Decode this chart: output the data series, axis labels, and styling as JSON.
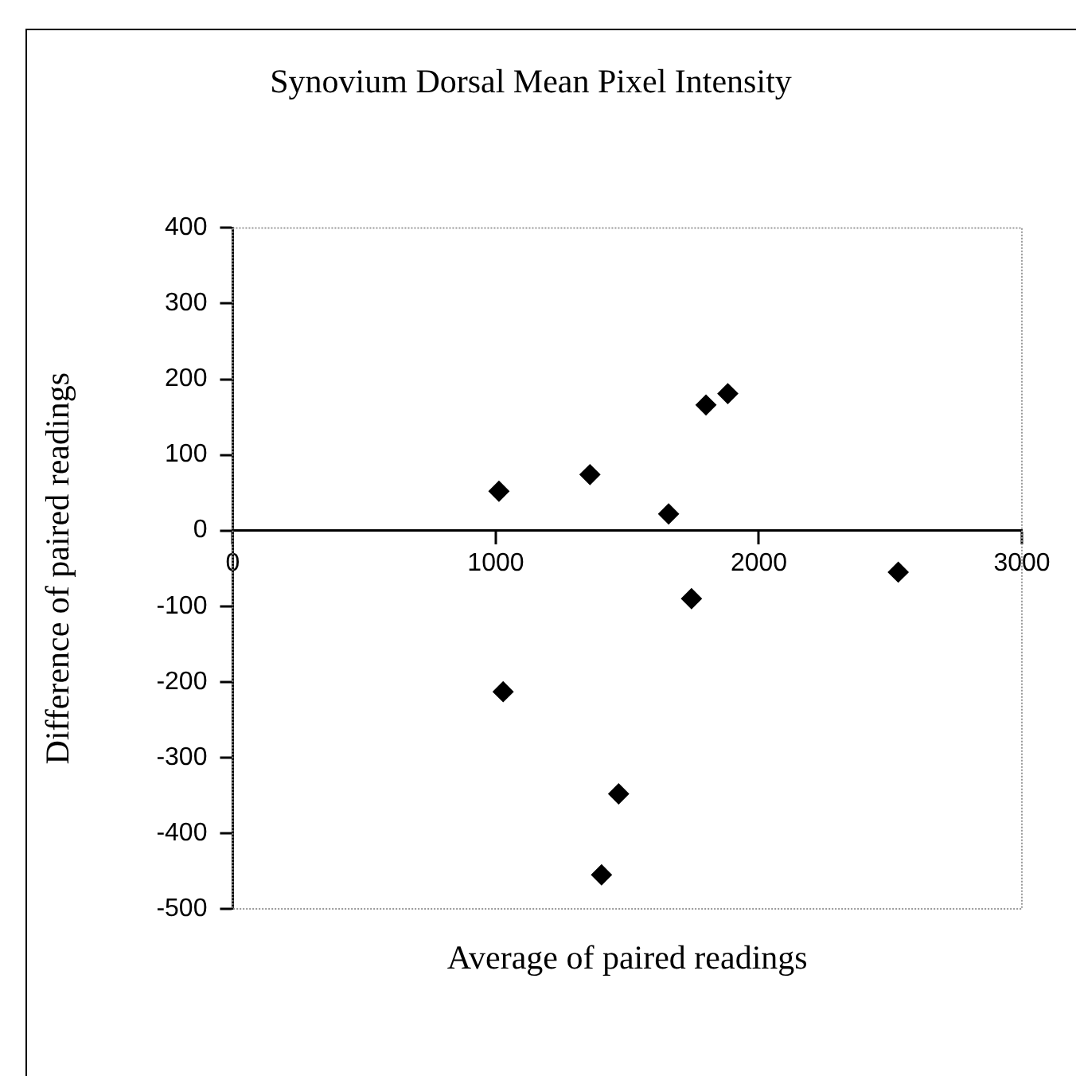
{
  "chart_data": {
    "type": "scatter",
    "title": "Synovium Dorsal Mean Pixel Intensity",
    "xlabel": "Average of paired readings",
    "ylabel": "Difference of paired readings",
    "x": [
      1012,
      1358,
      1657,
      1799,
      1882,
      1744,
      2530,
      1028,
      1467,
      1402
    ],
    "series": [
      {
        "color": "#000000",
        "values": [
          52,
          74,
          22,
          166,
          181,
          -90,
          -55,
          -213,
          -348,
          -455
        ]
      }
    ],
    "xlim": [
      0,
      3000
    ],
    "xticks": [
      0,
      1000,
      2000,
      3000
    ],
    "ylim": [
      -500,
      400
    ],
    "yticks": [
      -500,
      -400,
      -300,
      -200,
      -100,
      0,
      100,
      200,
      300,
      400
    ],
    "grid": false,
    "legend": false,
    "marker": "diamond"
  }
}
